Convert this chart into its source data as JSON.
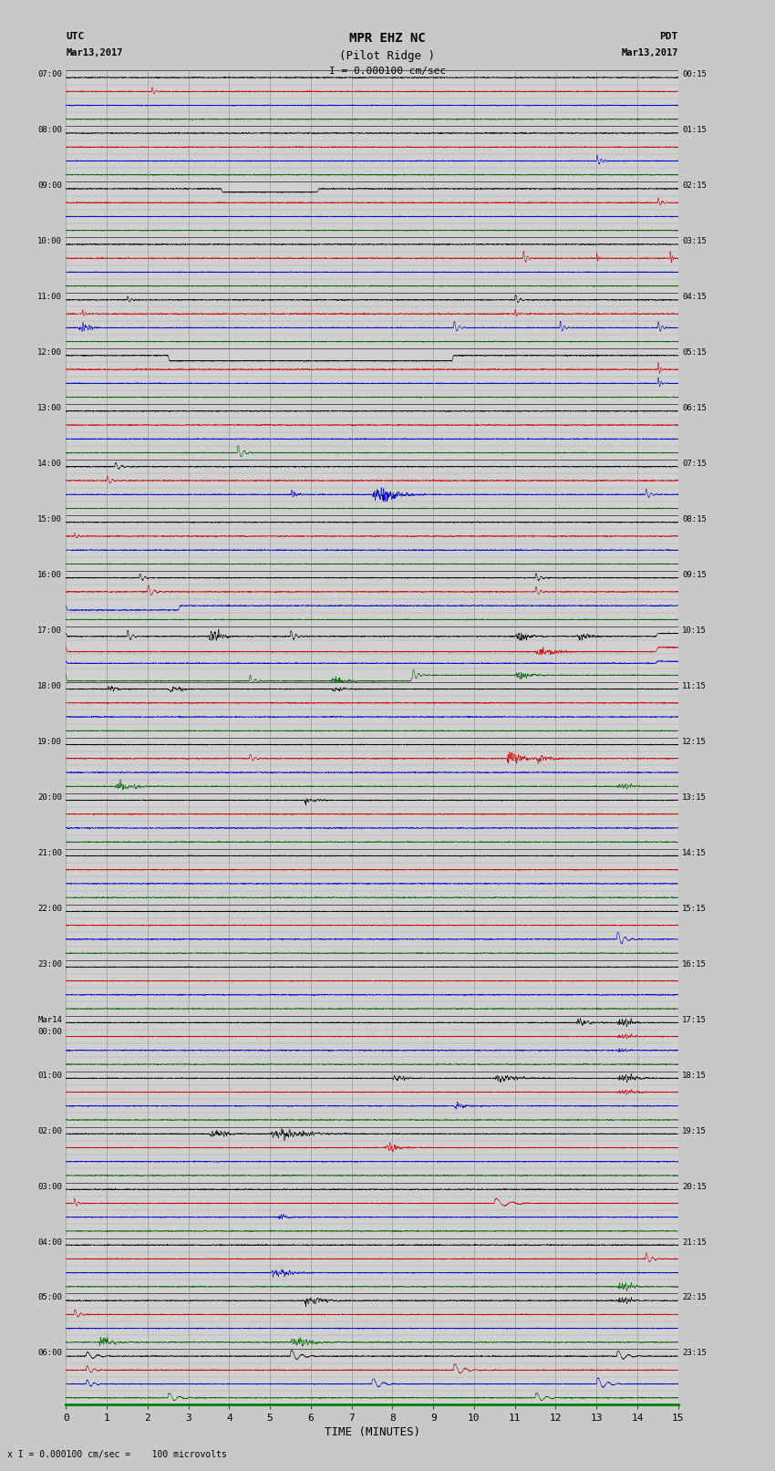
{
  "title_line1": "MPR EHZ NC",
  "title_line2": "(Pilot Ridge )",
  "scale_label": "I = 0.000100 cm/sec",
  "bottom_note": "x I = 0.000100 cm/sec =    100 microvolts",
  "xlabel": "TIME (MINUTES)",
  "left_times": [
    "07:00",
    "08:00",
    "09:00",
    "10:00",
    "11:00",
    "12:00",
    "13:00",
    "14:00",
    "15:00",
    "16:00",
    "17:00",
    "18:00",
    "19:00",
    "20:00",
    "21:00",
    "22:00",
    "23:00",
    "Mar14\n00:00",
    "01:00",
    "02:00",
    "03:00",
    "04:00",
    "05:00",
    "06:00"
  ],
  "right_times": [
    "00:15",
    "01:15",
    "02:15",
    "03:15",
    "04:15",
    "05:15",
    "06:15",
    "07:15",
    "08:15",
    "09:15",
    "10:15",
    "11:15",
    "12:15",
    "13:15",
    "14:15",
    "15:15",
    "16:15",
    "17:15",
    "18:15",
    "19:15",
    "20:15",
    "21:15",
    "22:15",
    "23:15"
  ],
  "n_rows": 24,
  "minutes_per_row": 15,
  "bg_color": "#e8e8e8",
  "plot_bg": "#d8d8d8",
  "trace_colors": [
    "#000000",
    "#cc0000",
    "#0000cc",
    "#006400"
  ],
  "grid_color": "#aaaaaa",
  "fig_width": 8.5,
  "fig_height": 16.13,
  "dpi": 100
}
